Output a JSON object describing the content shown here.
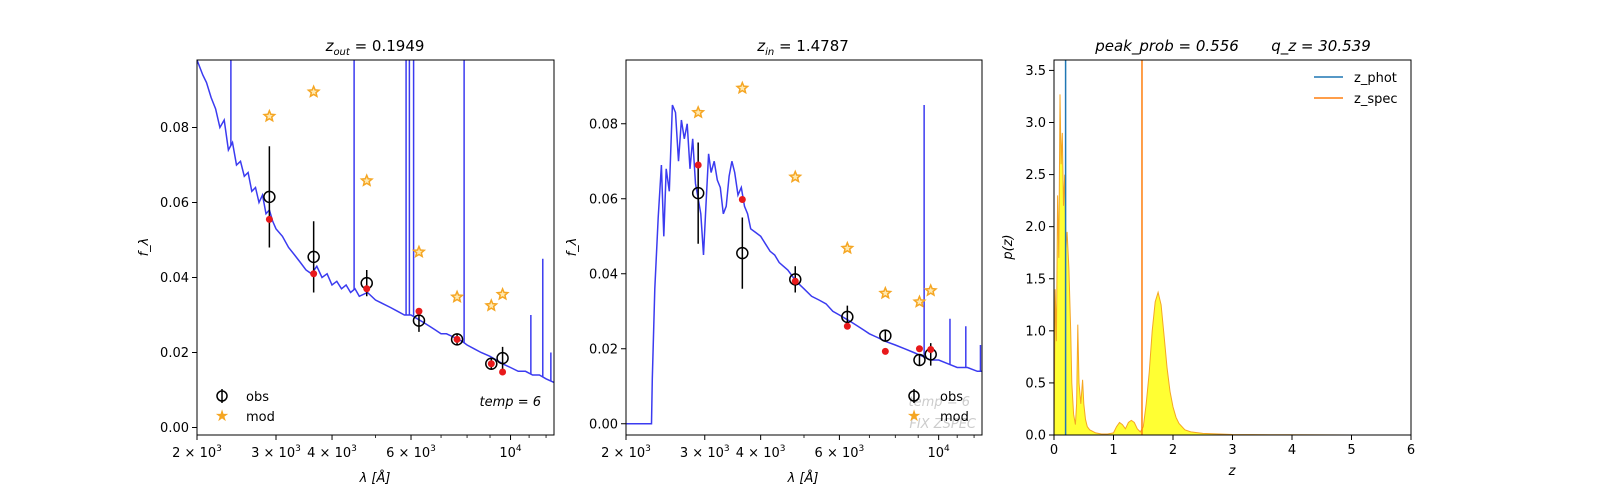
{
  "chart_data": [
    {
      "type": "line",
      "title_main": "z",
      "title_sub": "out",
      "title_value": " = 0.1949",
      "xlabel": "λ [Å]",
      "ylabel": "f_λ",
      "xscale": "log",
      "xlim": [
        2000,
        12500
      ],
      "ylim": [
        -0.002,
        0.098
      ],
      "xticks": [
        {
          "value": 2000,
          "base": "2 × 10",
          "exp": "3"
        },
        {
          "value": 3000,
          "base": "3 × 10",
          "exp": "3"
        },
        {
          "value": 4000,
          "base": "4 × 10",
          "exp": "3"
        },
        {
          "value": 6000,
          "base": "6 × 10",
          "exp": "3"
        },
        {
          "value": 10000,
          "base": "10",
          "exp": "4"
        }
      ],
      "yticks": [
        "0.00",
        "0.02",
        "0.04",
        "0.06",
        "0.08"
      ],
      "ytick_values": [
        0.0,
        0.02,
        0.04,
        0.06,
        0.08
      ],
      "spectrum": {
        "color": "#3b3bf0",
        "points": [
          [
            2000,
            0.098
          ],
          [
            2060,
            0.094
          ],
          [
            2100,
            0.092
          ],
          [
            2150,
            0.088
          ],
          [
            2200,
            0.085
          ],
          [
            2250,
            0.08
          ],
          [
            2300,
            0.082
          ],
          [
            2350,
            0.074
          ],
          [
            2400,
            0.076
          ],
          [
            2450,
            0.07
          ],
          [
            2500,
            0.071
          ],
          [
            2550,
            0.067
          ],
          [
            2600,
            0.068
          ],
          [
            2650,
            0.063
          ],
          [
            2700,
            0.064
          ],
          [
            2750,
            0.06
          ],
          [
            2800,
            0.062
          ],
          [
            2850,
            0.057
          ],
          [
            2900,
            0.058
          ],
          [
            2950,
            0.055
          ],
          [
            3000,
            0.053
          ],
          [
            3100,
            0.051
          ],
          [
            3200,
            0.048
          ],
          [
            3300,
            0.046
          ],
          [
            3400,
            0.044
          ],
          [
            3500,
            0.042
          ],
          [
            3600,
            0.041
          ],
          [
            3700,
            0.043
          ],
          [
            3800,
            0.04
          ],
          [
            3900,
            0.041
          ],
          [
            4000,
            0.038
          ],
          [
            4100,
            0.039
          ],
          [
            4200,
            0.037
          ],
          [
            4300,
            0.038
          ],
          [
            4400,
            0.036
          ],
          [
            4500,
            0.037
          ],
          [
            4600,
            0.035
          ],
          [
            4800,
            0.036
          ],
          [
            5000,
            0.034
          ],
          [
            5200,
            0.033
          ],
          [
            5400,
            0.032
          ],
          [
            5600,
            0.031
          ],
          [
            5800,
            0.03
          ],
          [
            6000,
            0.03
          ],
          [
            6200,
            0.029
          ],
          [
            6400,
            0.028
          ],
          [
            6600,
            0.027
          ],
          [
            6800,
            0.026
          ],
          [
            7000,
            0.025
          ],
          [
            7200,
            0.025
          ],
          [
            7500,
            0.024
          ],
          [
            7800,
            0.023
          ],
          [
            8000,
            0.022
          ],
          [
            8300,
            0.021
          ],
          [
            8600,
            0.02
          ],
          [
            9000,
            0.019
          ],
          [
            9300,
            0.018
          ],
          [
            9600,
            0.017
          ],
          [
            10000,
            0.016
          ],
          [
            10400,
            0.015
          ],
          [
            10800,
            0.015
          ],
          [
            11200,
            0.014
          ],
          [
            11600,
            0.014
          ],
          [
            12000,
            0.013
          ],
          [
            12500,
            0.012
          ]
        ],
        "spikes": [
          [
            2380,
            0.1
          ],
          [
            4480,
            0.1
          ],
          [
            5850,
            0.1
          ],
          [
            5950,
            0.1
          ],
          [
            6080,
            0.1
          ],
          [
            7880,
            0.1
          ],
          [
            11100,
            0.03
          ],
          [
            11800,
            0.045
          ],
          [
            12300,
            0.02
          ]
        ]
      },
      "obs": {
        "label": "obs",
        "points": [
          [
            2900,
            0.0615,
            0.0135
          ],
          [
            3640,
            0.0455,
            0.0095
          ],
          [
            4780,
            0.0385,
            0.0035
          ],
          [
            6250,
            0.0285,
            0.003
          ],
          [
            7600,
            0.0235,
            0.0015
          ],
          [
            9060,
            0.017,
            0.0015
          ],
          [
            9600,
            0.0185,
            0.003
          ]
        ]
      },
      "model": {
        "label": "mod",
        "color": "#f5a623",
        "points": [
          [
            2900,
            0.083
          ],
          [
            3640,
            0.0895
          ],
          [
            4780,
            0.0658
          ],
          [
            6250,
            0.0468
          ],
          [
            7600,
            0.0348
          ],
          [
            9060,
            0.0325
          ],
          [
            9600,
            0.0355
          ]
        ]
      },
      "fit": {
        "color": "#e8191b",
        "points": [
          [
            2900,
            0.0555
          ],
          [
            3640,
            0.041
          ],
          [
            4780,
            0.037
          ],
          [
            6250,
            0.031
          ],
          [
            7600,
            0.0235
          ],
          [
            9060,
            0.017
          ],
          [
            9600,
            0.0148
          ]
        ]
      },
      "annotation": "temp = 6",
      "legend_position": "lower left"
    },
    {
      "type": "line",
      "title_main": "z",
      "title_sub": "in",
      "title_value": " = 1.4787",
      "xlabel": "λ [Å]",
      "ylabel": "f_λ",
      "xscale": "log",
      "xlim": [
        2000,
        12500
      ],
      "ylim": [
        -0.003,
        0.097
      ],
      "xticks": [
        {
          "value": 2000,
          "base": "2 × 10",
          "exp": "3"
        },
        {
          "value": 3000,
          "base": "3 × 10",
          "exp": "3"
        },
        {
          "value": 4000,
          "base": "4 × 10",
          "exp": "3"
        },
        {
          "value": 6000,
          "base": "6 × 10",
          "exp": "3"
        },
        {
          "value": 10000,
          "base": "10",
          "exp": "4"
        }
      ],
      "yticks": [
        "0.00",
        "0.02",
        "0.04",
        "0.06",
        "0.08"
      ],
      "ytick_values": [
        0.0,
        0.02,
        0.04,
        0.06,
        0.08
      ],
      "spectrum": {
        "color": "#3b3bf0",
        "points": [
          [
            2000,
            0.0
          ],
          [
            2280,
            0.0
          ],
          [
            2290,
            0.012
          ],
          [
            2320,
            0.036
          ],
          [
            2360,
            0.055
          ],
          [
            2400,
            0.069
          ],
          [
            2430,
            0.05
          ],
          [
            2460,
            0.068
          ],
          [
            2500,
            0.062
          ],
          [
            2540,
            0.085
          ],
          [
            2580,
            0.083
          ],
          [
            2620,
            0.07
          ],
          [
            2660,
            0.081
          ],
          [
            2700,
            0.076
          ],
          [
            2740,
            0.08
          ],
          [
            2780,
            0.068
          ],
          [
            2820,
            0.076
          ],
          [
            2860,
            0.064
          ],
          [
            2900,
            0.06
          ],
          [
            2940,
            0.056
          ],
          [
            2980,
            0.045
          ],
          [
            3020,
            0.059
          ],
          [
            3060,
            0.072
          ],
          [
            3100,
            0.067
          ],
          [
            3150,
            0.07
          ],
          [
            3200,
            0.065
          ],
          [
            3250,
            0.063
          ],
          [
            3300,
            0.056
          ],
          [
            3350,
            0.058
          ],
          [
            3400,
            0.066
          ],
          [
            3450,
            0.07
          ],
          [
            3500,
            0.067
          ],
          [
            3560,
            0.061
          ],
          [
            3620,
            0.063
          ],
          [
            3680,
            0.058
          ],
          [
            3740,
            0.056
          ],
          [
            3800,
            0.052
          ],
          [
            3900,
            0.051
          ],
          [
            4000,
            0.05
          ],
          [
            4100,
            0.048
          ],
          [
            4200,
            0.046
          ],
          [
            4300,
            0.045
          ],
          [
            4400,
            0.043
          ],
          [
            4500,
            0.042
          ],
          [
            4600,
            0.041
          ],
          [
            4800,
            0.038
          ],
          [
            5000,
            0.036
          ],
          [
            5200,
            0.034
          ],
          [
            5400,
            0.033
          ],
          [
            5600,
            0.032
          ],
          [
            5800,
            0.03
          ],
          [
            6000,
            0.029
          ],
          [
            6200,
            0.028
          ],
          [
            6400,
            0.027
          ],
          [
            6600,
            0.026
          ],
          [
            6800,
            0.025
          ],
          [
            7000,
            0.024
          ],
          [
            7300,
            0.023
          ],
          [
            7600,
            0.022
          ],
          [
            8000,
            0.021
          ],
          [
            8400,
            0.02
          ],
          [
            8800,
            0.019
          ],
          [
            9200,
            0.018
          ],
          [
            9600,
            0.017
          ],
          [
            10000,
            0.017
          ],
          [
            10500,
            0.016
          ],
          [
            11000,
            0.015
          ],
          [
            11600,
            0.015
          ],
          [
            12200,
            0.014
          ],
          [
            12500,
            0.014
          ]
        ],
        "spikes": [
          [
            9280,
            0.085
          ],
          [
            10600,
            0.028
          ],
          [
            11500,
            0.026
          ],
          [
            12400,
            0.021
          ]
        ]
      },
      "obs": {
        "label": "obs",
        "points": [
          [
            2900,
            0.0615,
            0.0135
          ],
          [
            3640,
            0.0455,
            0.0095
          ],
          [
            4780,
            0.0385,
            0.0035
          ],
          [
            6250,
            0.0285,
            0.003
          ],
          [
            7600,
            0.0235,
            0.0015
          ],
          [
            9060,
            0.017,
            0.0015
          ],
          [
            9600,
            0.0185,
            0.003
          ]
        ]
      },
      "model": {
        "label": "mod",
        "color": "#f5a623",
        "points": [
          [
            2900,
            0.083
          ],
          [
            3640,
            0.0895
          ],
          [
            4780,
            0.0658
          ],
          [
            6250,
            0.0468
          ],
          [
            7600,
            0.0348
          ],
          [
            9060,
            0.0325
          ],
          [
            9600,
            0.0355
          ]
        ]
      },
      "fit": {
        "color": "#e8191b",
        "points": [
          [
            2900,
            0.069
          ],
          [
            3640,
            0.0598
          ],
          [
            4780,
            0.038
          ],
          [
            6250,
            0.026
          ],
          [
            7600,
            0.0193
          ],
          [
            9060,
            0.02
          ],
          [
            9600,
            0.0198
          ]
        ]
      },
      "watermark": [
        "temp = 6",
        "FIX ZSPEC"
      ],
      "legend_position": "lower right"
    },
    {
      "type": "area",
      "title_left": "peak_prob = 0.556",
      "title_right": "q_z = 30.539",
      "xlabel": "z",
      "ylabel": "p(z)",
      "xlim": [
        0,
        6
      ],
      "ylim": [
        0,
        3.6
      ],
      "xticks": [
        "0",
        "1",
        "2",
        "3",
        "4",
        "5",
        "6"
      ],
      "xtick_values": [
        0,
        1,
        2,
        3,
        4,
        5,
        6
      ],
      "yticks": [
        "0.0",
        "0.5",
        "1.0",
        "1.5",
        "2.0",
        "2.5",
        "3.0",
        "3.5"
      ],
      "ytick_values": [
        0.0,
        0.5,
        1.0,
        1.5,
        2.0,
        2.5,
        3.0,
        3.5
      ],
      "pz": [
        [
          0,
          0
        ],
        [
          0.02,
          1.4
        ],
        [
          0.04,
          0.9
        ],
        [
          0.06,
          2.3
        ],
        [
          0.08,
          1.7
        ],
        [
          0.1,
          3.27
        ],
        [
          0.12,
          2.6
        ],
        [
          0.14,
          2.9
        ],
        [
          0.16,
          2.2
        ],
        [
          0.18,
          2.5
        ],
        [
          0.2,
          1.8
        ],
        [
          0.22,
          1.95
        ],
        [
          0.25,
          1.6
        ],
        [
          0.28,
          1.0
        ],
        [
          0.3,
          0.5
        ],
        [
          0.33,
          0.2
        ],
        [
          0.36,
          0.1
        ],
        [
          0.38,
          0.3
        ],
        [
          0.4,
          1.06
        ],
        [
          0.42,
          0.5
        ],
        [
          0.45,
          0.3
        ],
        [
          0.48,
          0.53
        ],
        [
          0.5,
          0.3
        ],
        [
          0.53,
          0.15
        ],
        [
          0.56,
          0.08
        ],
        [
          0.6,
          0.05
        ],
        [
          0.7,
          0.02
        ],
        [
          0.8,
          0.01
        ],
        [
          0.9,
          0.01
        ],
        [
          1.0,
          0.02
        ],
        [
          1.05,
          0.08
        ],
        [
          1.1,
          0.12
        ],
        [
          1.15,
          0.1
        ],
        [
          1.2,
          0.06
        ],
        [
          1.25,
          0.12
        ],
        [
          1.3,
          0.14
        ],
        [
          1.35,
          0.12
        ],
        [
          1.4,
          0.06
        ],
        [
          1.45,
          0.03
        ],
        [
          1.5,
          0.08
        ],
        [
          1.55,
          0.3
        ],
        [
          1.6,
          0.6
        ],
        [
          1.65,
          1.0
        ],
        [
          1.7,
          1.28
        ],
        [
          1.75,
          1.37
        ],
        [
          1.8,
          1.25
        ],
        [
          1.85,
          0.95
        ],
        [
          1.9,
          0.65
        ],
        [
          1.95,
          0.42
        ],
        [
          2.0,
          0.27
        ],
        [
          2.05,
          0.17
        ],
        [
          2.1,
          0.11
        ],
        [
          2.2,
          0.05
        ],
        [
          2.3,
          0.03
        ],
        [
          2.5,
          0.015
        ],
        [
          3.0,
          0.005
        ],
        [
          4.0,
          0.002
        ],
        [
          5.0,
          0.0
        ]
      ],
      "z_phot": {
        "label": "z_phot",
        "value": 0.1949,
        "color": "#1f77b4"
      },
      "z_spec": {
        "label": "z_spec",
        "value": 1.4787,
        "color": "#ff7f0e"
      },
      "fill_color": "#ffff33",
      "line_color": "#f5a623",
      "legend_position": "upper right"
    }
  ]
}
